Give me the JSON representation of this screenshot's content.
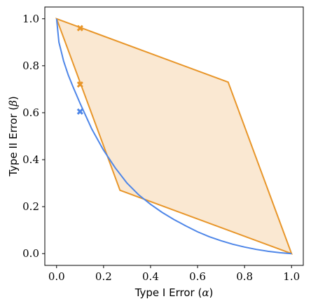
{
  "chart_data": {
    "type": "line",
    "xlabel": "Type I Error",
    "xlabel_symbol": "α",
    "ylabel": "Type II Error",
    "ylabel_symbol": "β",
    "xlim": [
      -0.05,
      1.05
    ],
    "ylim": [
      -0.05,
      1.05
    ],
    "xticks": [
      0.0,
      0.2,
      0.4,
      0.6,
      0.8,
      1.0
    ],
    "yticks": [
      0.0,
      0.2,
      0.4,
      0.6,
      0.8,
      1.0
    ],
    "xtick_labels": [
      "0.0",
      "0.2",
      "0.4",
      "0.6",
      "0.8",
      "1.0"
    ],
    "ytick_labels": [
      "0.0",
      "0.2",
      "0.4",
      "0.6",
      "0.8",
      "1.0"
    ],
    "grid": false,
    "series": [
      {
        "kind": "polygon",
        "color": "#e8962a",
        "fill": "#fae8d2",
        "points": [
          [
            0.0,
            1.0
          ],
          [
            0.73,
            0.73
          ],
          [
            1.0,
            0.0
          ],
          [
            0.27,
            0.27
          ]
        ]
      },
      {
        "kind": "curve",
        "color": "#4e86e8",
        "points": [
          [
            0.0,
            1.0
          ],
          [
            0.01,
            0.9
          ],
          [
            0.02,
            0.86
          ],
          [
            0.03,
            0.82
          ],
          [
            0.05,
            0.76
          ],
          [
            0.07,
            0.71
          ],
          [
            0.1,
            0.64
          ],
          [
            0.15,
            0.53
          ],
          [
            0.2,
            0.44
          ],
          [
            0.25,
            0.365
          ],
          [
            0.3,
            0.3
          ],
          [
            0.35,
            0.25
          ],
          [
            0.4,
            0.21
          ],
          [
            0.45,
            0.175
          ],
          [
            0.5,
            0.145
          ],
          [
            0.55,
            0.118
          ],
          [
            0.6,
            0.093
          ],
          [
            0.65,
            0.072
          ],
          [
            0.7,
            0.055
          ],
          [
            0.75,
            0.04
          ],
          [
            0.8,
            0.028
          ],
          [
            0.85,
            0.018
          ],
          [
            0.9,
            0.01
          ],
          [
            0.95,
            0.004
          ],
          [
            1.0,
            0.0
          ]
        ]
      }
    ],
    "markers": [
      {
        "x": 0.1,
        "y": 0.96,
        "color": "#e8962a",
        "symbol": "x"
      },
      {
        "x": 0.1,
        "y": 0.72,
        "color": "#e8962a",
        "symbol": "x"
      },
      {
        "x": 0.1,
        "y": 0.605,
        "color": "#4e86e8",
        "symbol": "x"
      }
    ]
  }
}
